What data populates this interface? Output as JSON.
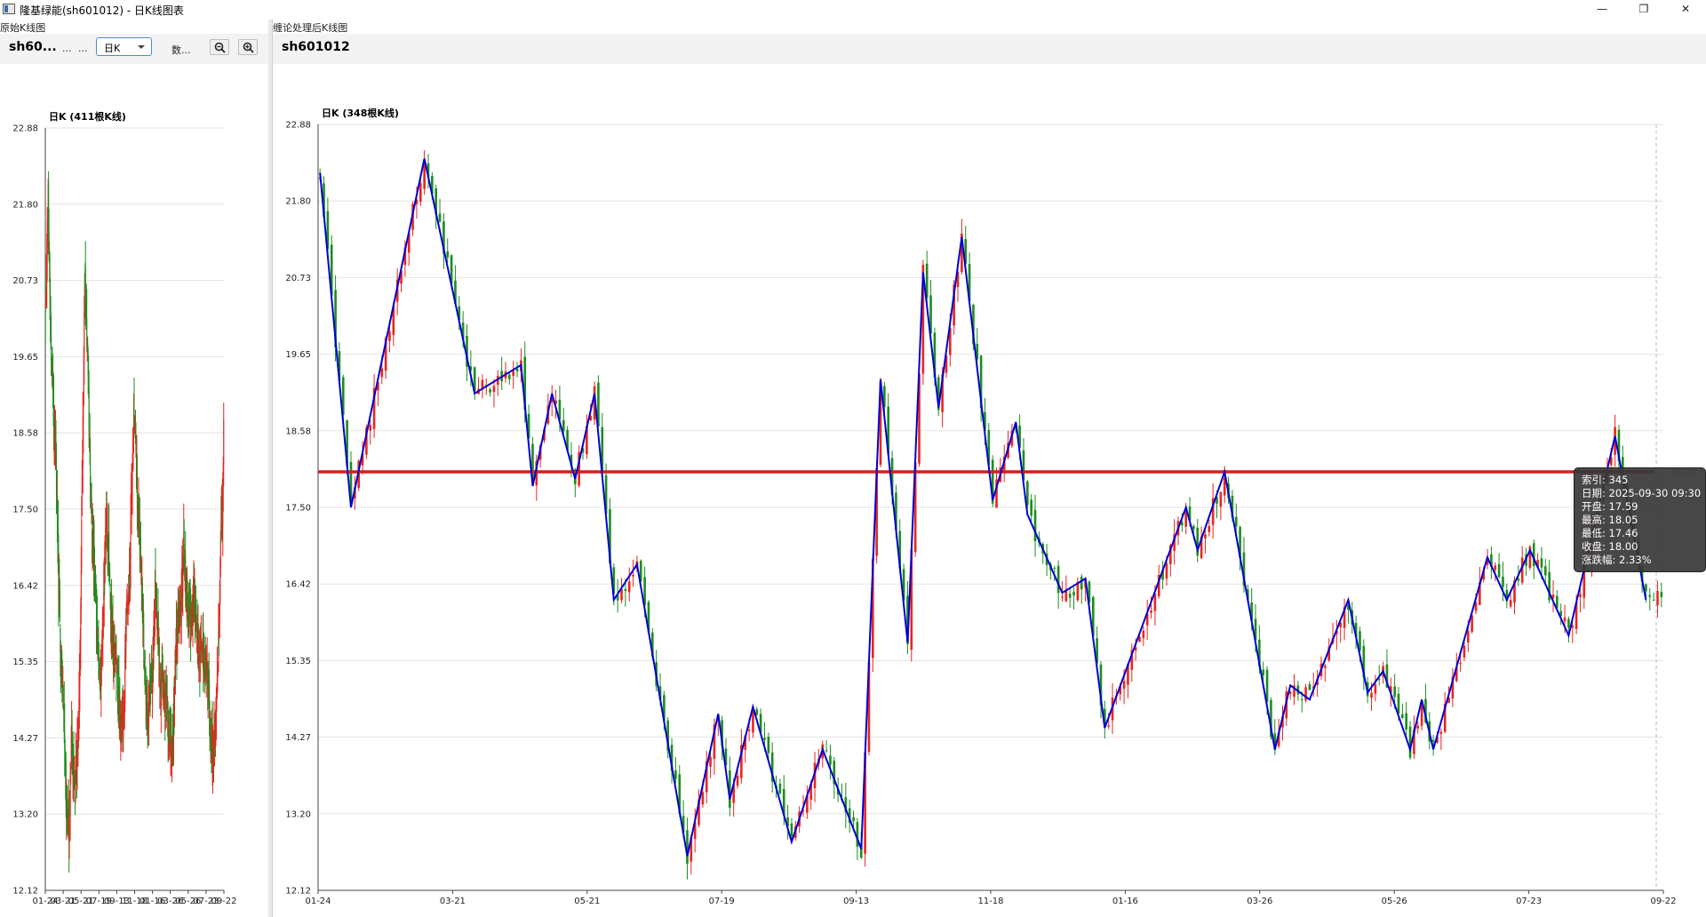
{
  "window": {
    "title": "隆基绿能(sh601012) - 日K线图表",
    "minimize_label": "—",
    "maximize_label": "❐",
    "close_label": "✕"
  },
  "left_panel": {
    "group_label": "原始K线图",
    "symbol": "sh60...",
    "ellipsis1": "...",
    "ellipsis2": "...",
    "period_combo": {
      "selected": "日K"
    },
    "data_label": "数...",
    "zoom_out_icon": "zoom-out-icon",
    "zoom_in_icon": "zoom-in-icon"
  },
  "right_panel": {
    "group_label": "缠论处理后K线图",
    "symbol": "sh601012"
  },
  "colors": {
    "up": "#e8251f",
    "down": "#1c8d1c",
    "stroke_line": "#0000d6",
    "price_line": "#d81e1e",
    "grid": "#e3e3e3"
  },
  "chart_data": [
    {
      "type": "candlestick",
      "title": "日K (411根K线)",
      "y_ticks": [
        "22.88",
        "21.80",
        "20.73",
        "19.65",
        "18.58",
        "17.50",
        "16.42",
        "15.35",
        "14.27",
        "13.20",
        "12.12"
      ],
      "ylim": [
        12.12,
        22.88
      ],
      "x_ticks": [
        "01-24",
        "03-21",
        "05-21",
        "07-19",
        "09-13",
        "11-18",
        "01-16",
        "03-26",
        "05-26",
        "07-23",
        "09-22"
      ],
      "bar_count": 411,
      "close_path": [
        [
          0,
          20.4
        ],
        [
          6,
          21.9
        ],
        [
          12,
          19.9
        ],
        [
          18,
          18.9
        ],
        [
          24,
          18.3
        ],
        [
          30,
          16.4
        ],
        [
          36,
          15.4
        ],
        [
          42,
          14.6
        ],
        [
          48,
          13.4
        ],
        [
          54,
          13.0
        ],
        [
          60,
          14.1
        ],
        [
          66,
          13.6
        ],
        [
          72,
          13.9
        ],
        [
          78,
          14.9
        ],
        [
          84,
          17.9
        ],
        [
          90,
          20.7
        ],
        [
          96,
          19.8
        ],
        [
          102,
          18.2
        ],
        [
          108,
          17.2
        ],
        [
          114,
          16.3
        ],
        [
          120,
          15.4
        ],
        [
          126,
          15.1
        ],
        [
          132,
          15.8
        ],
        [
          138,
          17.3
        ],
        [
          144,
          17.1
        ],
        [
          150,
          16.0
        ],
        [
          156,
          15.4
        ],
        [
          162,
          15.5
        ],
        [
          168,
          14.9
        ],
        [
          174,
          14.3
        ],
        [
          180,
          14.7
        ],
        [
          186,
          15.9
        ],
        [
          192,
          16.4
        ],
        [
          198,
          17.6
        ],
        [
          204,
          18.9
        ],
        [
          210,
          17.9
        ],
        [
          216,
          17.2
        ],
        [
          222,
          16.3
        ],
        [
          228,
          15.4
        ],
        [
          234,
          14.6
        ],
        [
          240,
          14.9
        ],
        [
          246,
          15.2
        ],
        [
          252,
          16.3
        ],
        [
          258,
          15.9
        ],
        [
          264,
          15.0
        ],
        [
          270,
          15.1
        ],
        [
          276,
          14.8
        ],
        [
          282,
          14.6
        ],
        [
          288,
          14.1
        ],
        [
          294,
          14.3
        ],
        [
          300,
          15.5
        ],
        [
          306,
          16.1
        ],
        [
          312,
          16.3
        ],
        [
          318,
          16.9
        ],
        [
          324,
          16.4
        ],
        [
          330,
          15.8
        ],
        [
          336,
          15.9
        ],
        [
          342,
          16.3
        ],
        [
          348,
          15.8
        ],
        [
          354,
          15.4
        ],
        [
          360,
          15.6
        ],
        [
          366,
          15.3
        ],
        [
          372,
          15.2
        ],
        [
          378,
          14.6
        ],
        [
          384,
          14.1
        ],
        [
          390,
          14.4
        ],
        [
          396,
          15.0
        ],
        [
          402,
          16.8
        ],
        [
          408,
          17.8
        ],
        [
          411,
          19.4
        ]
      ]
    },
    {
      "type": "candlestick",
      "title": "日K (348根K线)",
      "y_ticks": [
        "22.88",
        "21.80",
        "20.73",
        "19.65",
        "18.58",
        "17.50",
        "16.42",
        "15.35",
        "14.27",
        "13.20",
        "12.12"
      ],
      "ylim": [
        12.12,
        22.88
      ],
      "x_ticks": [
        "01-24",
        "03-21",
        "05-21",
        "07-19",
        "09-13",
        "11-18",
        "01-16",
        "03-26",
        "05-26",
        "07-23",
        "09-22"
      ],
      "bar_count": 348,
      "reference_line": {
        "value": 18.0,
        "label": "18.00"
      },
      "stroke_points": [
        [
          0,
          22.2
        ],
        [
          8,
          17.5
        ],
        [
          27,
          22.4
        ],
        [
          40,
          19.1
        ],
        [
          52,
          19.5
        ],
        [
          55,
          17.8
        ],
        [
          60,
          19.1
        ],
        [
          66,
          17.9
        ],
        [
          71,
          19.1
        ],
        [
          76,
          16.2
        ],
        [
          82,
          16.7
        ],
        [
          95,
          12.6
        ],
        [
          103,
          14.6
        ],
        [
          106,
          13.4
        ],
        [
          112,
          14.7
        ],
        [
          122,
          12.8
        ],
        [
          130,
          14.1
        ],
        [
          140,
          12.7
        ],
        [
          145,
          19.3
        ],
        [
          152,
          15.6
        ],
        [
          156,
          20.8
        ],
        [
          160,
          18.9
        ],
        [
          166,
          21.3
        ],
        [
          174,
          17.6
        ],
        [
          180,
          18.7
        ],
        [
          183,
          17.4
        ],
        [
          192,
          16.3
        ],
        [
          198,
          16.5
        ],
        [
          203,
          14.4
        ],
        [
          224,
          17.5
        ],
        [
          227,
          16.9
        ],
        [
          234,
          18.0
        ],
        [
          247,
          14.1
        ],
        [
          251,
          15.0
        ],
        [
          256,
          14.8
        ],
        [
          266,
          16.2
        ],
        [
          271,
          14.9
        ],
        [
          275,
          15.2
        ],
        [
          282,
          14.1
        ],
        [
          285,
          14.8
        ],
        [
          288,
          14.1
        ],
        [
          302,
          16.8
        ],
        [
          307,
          16.2
        ],
        [
          313,
          16.9
        ],
        [
          323,
          15.7
        ],
        [
          335,
          18.5
        ],
        [
          343,
          16.2
        ]
      ],
      "tooltip": {
        "index": "索引: 345",
        "date": "日期: 2025-09-30 09:30",
        "open": "开盘: 17.59",
        "high": "最高: 18.05",
        "low": "最低: 17.46",
        "close": "收盘: 18.00",
        "change": "涨跌幅: 2.33%"
      }
    }
  ]
}
